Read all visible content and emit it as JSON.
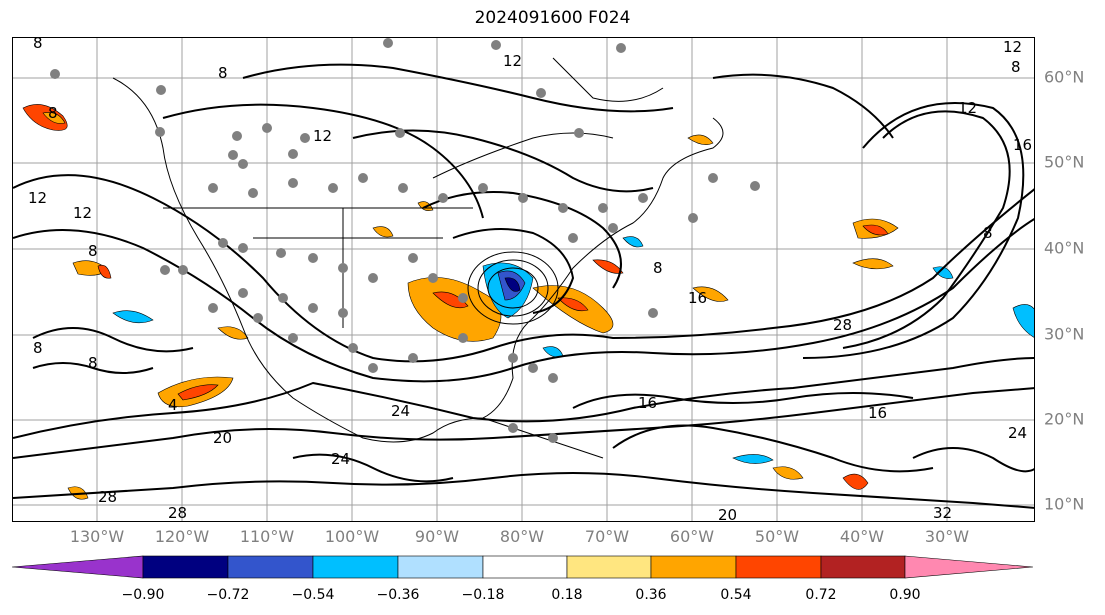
{
  "title": "2024091600 F024",
  "lon_labels": [
    "130°W",
    "120°W",
    "110°W",
    "100°W",
    "90°W",
    "80°W",
    "70°W",
    "60°W",
    "50°W",
    "40°W",
    "30°W"
  ],
  "lat_labels": [
    "60°N",
    "50°N",
    "40°N",
    "30°N",
    "20°N",
    "10°N"
  ],
  "colorbar": {
    "ticks": [
      "−0.90",
      "−0.72",
      "−0.54",
      "−0.36",
      "−0.18",
      "0.18",
      "0.36",
      "0.54",
      "0.72",
      "0.90"
    ],
    "colors": [
      "#9933cc",
      "#000080",
      "#3355cc",
      "#00bfff",
      "#b0e0ff",
      "#ffffff",
      "#ffe680",
      "#ffa500",
      "#ff4500",
      "#b22222",
      "#ff88b0"
    ]
  },
  "contour_labels": [
    {
      "text": "8"
    },
    {
      "text": "12"
    },
    {
      "text": "8"
    },
    {
      "text": "12"
    },
    {
      "text": "12"
    },
    {
      "text": "8"
    },
    {
      "text": "12"
    },
    {
      "text": "16"
    },
    {
      "text": "12"
    },
    {
      "text": "12"
    },
    {
      "text": "8"
    },
    {
      "text": "8"
    },
    {
      "text": "8"
    },
    {
      "text": "28"
    },
    {
      "text": "16"
    },
    {
      "text": "16"
    },
    {
      "text": "20"
    },
    {
      "text": "24"
    },
    {
      "text": "24"
    },
    {
      "text": "28"
    },
    {
      "text": "28"
    },
    {
      "text": "20"
    },
    {
      "text": "32"
    },
    {
      "text": "24"
    },
    {
      "text": "16"
    },
    {
      "text": "8"
    },
    {
      "text": "8"
    },
    {
      "text": "4"
    },
    {
      "text": "8"
    }
  ]
}
